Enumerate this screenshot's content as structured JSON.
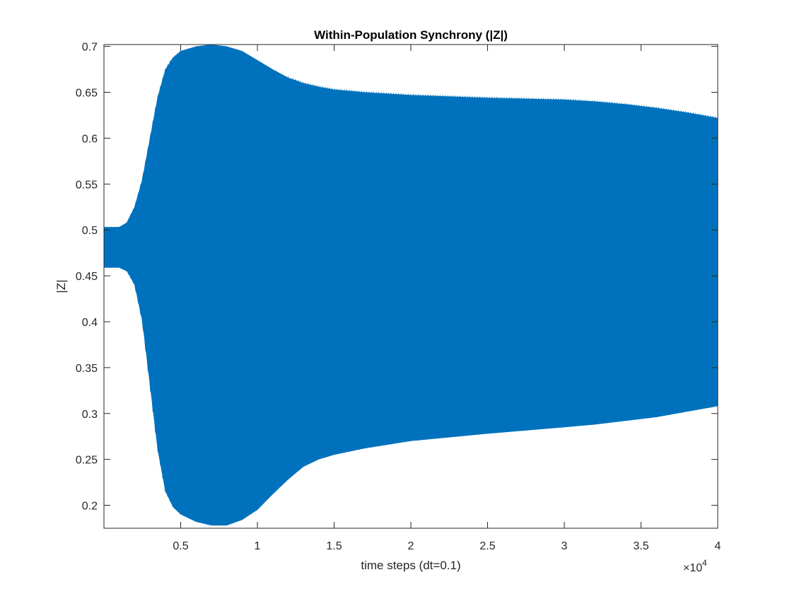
{
  "chart_data": {
    "type": "area",
    "title": "Within-Population Synchrony (|Z|)",
    "xlabel": "time steps (dt=0.1)",
    "ylabel": "|Z|",
    "x_exponent_label": "×10",
    "x_exponent_power": "4",
    "xlim": [
      0,
      40000
    ],
    "ylim": [
      0.175,
      0.702
    ],
    "x_ticks": [
      5000,
      10000,
      15000,
      20000,
      25000,
      30000,
      35000,
      40000
    ],
    "x_tick_labels": [
      "0.5",
      "1",
      "1.5",
      "2",
      "2.5",
      "3",
      "3.5",
      "4"
    ],
    "y_ticks": [
      0.2,
      0.25,
      0.3,
      0.35,
      0.4,
      0.45,
      0.5,
      0.55,
      0.6,
      0.65,
      0.7
    ],
    "y_tick_labels": [
      "0.2",
      "0.25",
      "0.3",
      "0.35",
      "0.4",
      "0.45",
      "0.5",
      "0.55",
      "0.6",
      "0.65",
      "0.7"
    ],
    "grid": false,
    "series_color": "#0072BD",
    "series": [
      {
        "style": "fast oscillation envelope",
        "x": [
          0,
          1000,
          1500,
          2000,
          2500,
          3000,
          3500,
          4000,
          4500,
          5000,
          6000,
          7000,
          8000,
          9000,
          10000,
          11000,
          12000,
          13000,
          14000,
          15000,
          17000,
          20000,
          25000,
          30000,
          32000,
          34000,
          36000,
          38000,
          40000
        ],
        "upper": [
          0.503,
          0.503,
          0.508,
          0.525,
          0.555,
          0.6,
          0.645,
          0.675,
          0.688,
          0.695,
          0.7,
          0.702,
          0.7,
          0.695,
          0.685,
          0.675,
          0.666,
          0.66,
          0.656,
          0.653,
          0.65,
          0.647,
          0.644,
          0.642,
          0.64,
          0.637,
          0.633,
          0.628,
          0.622
        ],
        "lower": [
          0.459,
          0.459,
          0.455,
          0.44,
          0.4,
          0.33,
          0.26,
          0.215,
          0.198,
          0.19,
          0.182,
          0.178,
          0.178,
          0.184,
          0.195,
          0.212,
          0.228,
          0.242,
          0.25,
          0.255,
          0.262,
          0.27,
          0.278,
          0.285,
          0.288,
          0.292,
          0.296,
          0.302,
          0.308
        ]
      }
    ]
  }
}
